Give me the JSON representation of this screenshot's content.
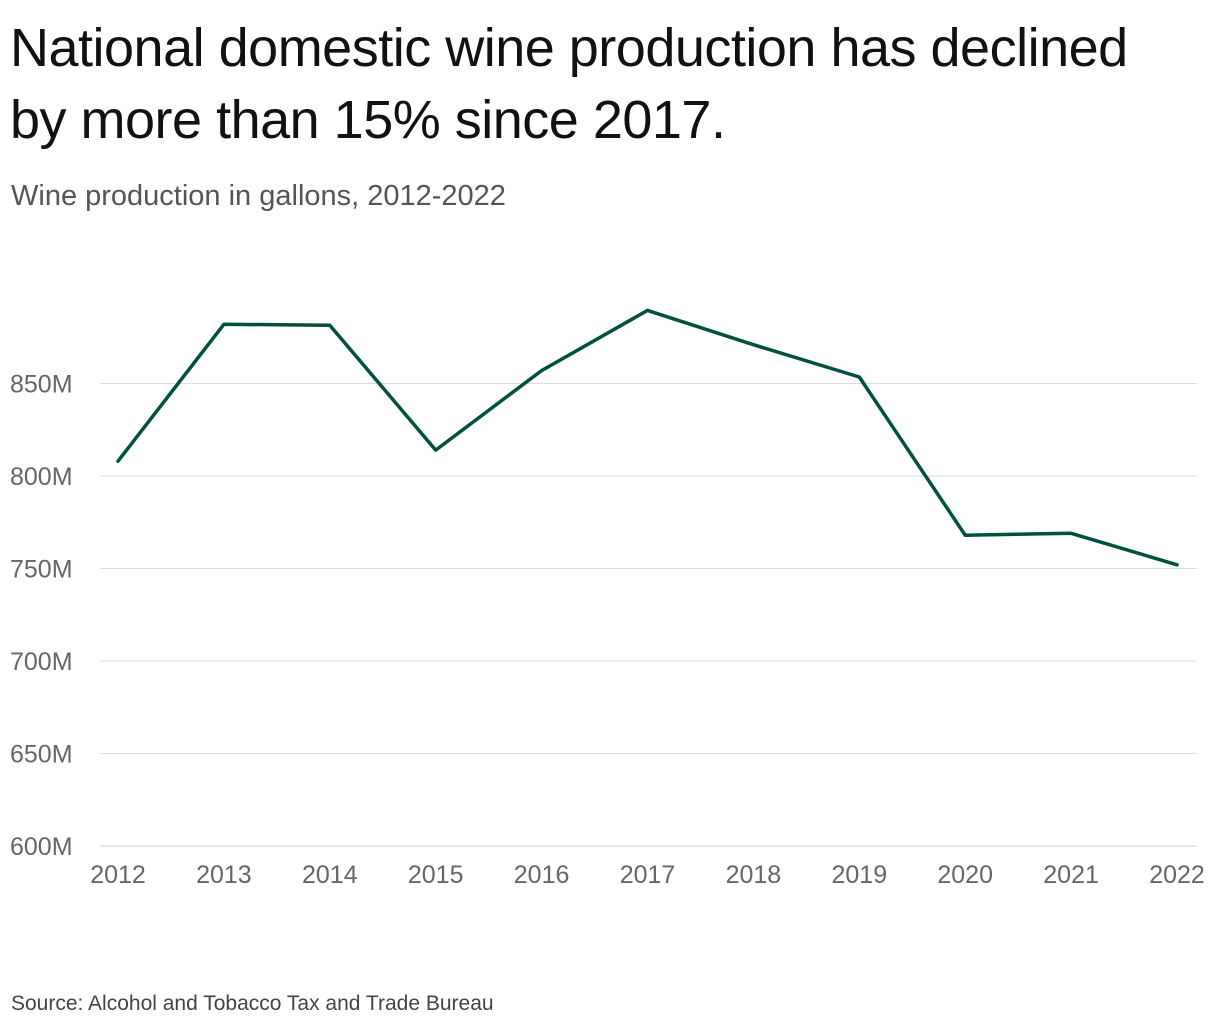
{
  "header": {
    "title": "National domestic wine production has declined by more than 15% since 2017.",
    "subtitle": "Wine production in gallons, 2012-2022"
  },
  "footer": {
    "source": "Source: Alcohol and Tobacco Tax and Trade Bureau"
  },
  "chart_data": {
    "type": "line",
    "title": "National domestic wine production has declined by more than 15% since 2017.",
    "subtitle": "Wine production in gallons, 2012-2022",
    "xlabel": "",
    "ylabel": "",
    "x": [
      "2012",
      "2013",
      "2014",
      "2015",
      "2016",
      "2017",
      "2018",
      "2019",
      "2020",
      "2021",
      "2022"
    ],
    "series": [
      {
        "values": [
          808,
          882,
          881.5,
          814,
          857,
          889.5,
          871,
          853.5,
          768,
          769,
          752
        ],
        "color": "#005040"
      }
    ],
    "ylim": [
      600,
      900
    ],
    "yticks": [
      600,
      650,
      700,
      750,
      800,
      850
    ],
    "ytick_labels": [
      "600M",
      "650M",
      "700M",
      "750M",
      "800M",
      "850M"
    ],
    "units": "million gallons",
    "grid": "horizontal",
    "legend": "none"
  }
}
